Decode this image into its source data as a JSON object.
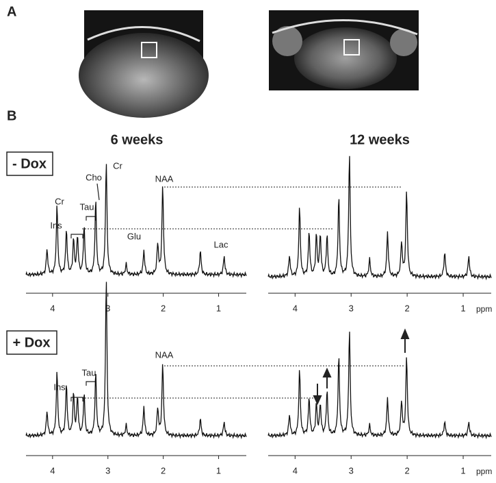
{
  "panel_a": {
    "label": "A"
  },
  "panel_b": {
    "label": "B",
    "columns": [
      "6 weeks",
      "12 weeks"
    ],
    "rows": [
      "- Dox",
      "+ Dox"
    ],
    "axis": {
      "unit": "ppm",
      "ticks": [
        4,
        3,
        2,
        1
      ],
      "xlim": [
        4.48,
        0.5
      ]
    },
    "peaks_ppm": [
      4.1,
      3.92,
      3.75,
      3.62,
      3.55,
      3.43,
      3.22,
      3.03,
      2.67,
      2.35,
      2.1,
      2.01,
      1.33,
      0.9
    ],
    "spectra": [
      [
        37,
        100,
        65,
        50,
        55,
        70,
        108,
        165,
        15,
        35,
        45,
        130,
        35,
        27
      ],
      [
        30,
        100,
        65,
        60,
        60,
        60,
        115,
        180,
        25,
        65,
        50,
        125,
        35,
        30
      ],
      [
        35,
        92,
        75,
        60,
        55,
        60,
        90,
        230,
        15,
        42,
        40,
        105,
        25,
        20
      ],
      [
        30,
        95,
        55,
        45,
        45,
        65,
        115,
        155,
        15,
        55,
        50,
        115,
        20,
        20
      ]
    ],
    "annotations_top": [
      "Cr",
      "Ins",
      "Tau",
      "Cho",
      "Cr",
      "NAA",
      "Glu",
      "Lac"
    ],
    "annotations_bottom": [
      "Tau",
      "Ins",
      "NAA"
    ]
  }
}
